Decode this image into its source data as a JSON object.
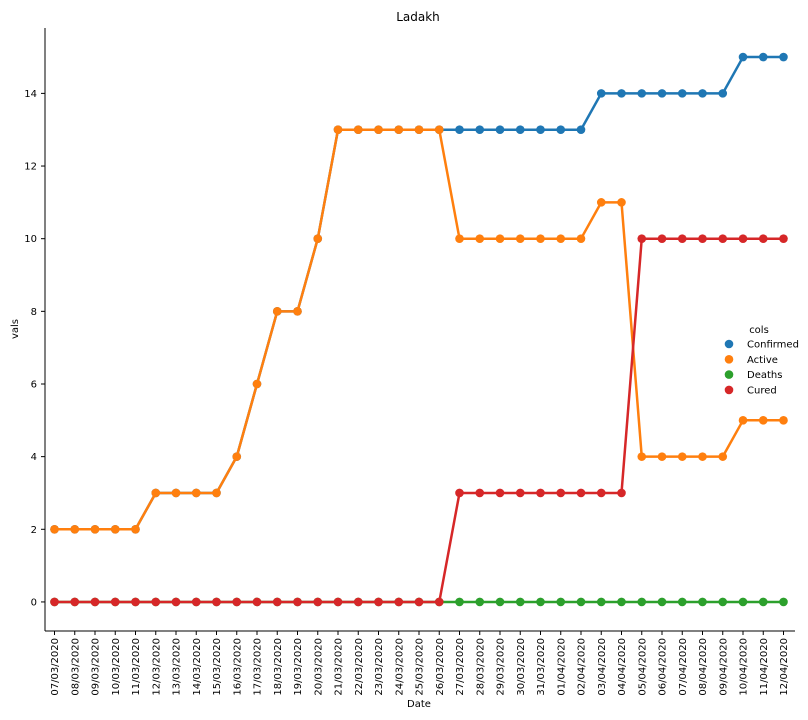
{
  "chart_data": {
    "type": "line",
    "title": "Ladakh",
    "xlabel": "Date",
    "ylabel": "vals",
    "ylim": [
      -0.8,
      15.8
    ],
    "yticks": [
      0,
      2,
      4,
      6,
      8,
      10,
      12,
      14
    ],
    "grid": false,
    "legend": {
      "title": "cols",
      "placement": "center-right"
    },
    "categories": [
      "07/03/2020",
      "08/03/2020",
      "09/03/2020",
      "10/03/2020",
      "11/03/2020",
      "12/03/2020",
      "13/03/2020",
      "14/03/2020",
      "15/03/2020",
      "16/03/2020",
      "17/03/2020",
      "18/03/2020",
      "19/03/2020",
      "20/03/2020",
      "21/03/2020",
      "22/03/2020",
      "23/03/2020",
      "24/03/2020",
      "25/03/2020",
      "26/03/2020",
      "27/03/2020",
      "28/03/2020",
      "29/03/2020",
      "30/03/2020",
      "31/03/2020",
      "01/04/2020",
      "02/04/2020",
      "03/04/2020",
      "04/04/2020",
      "05/04/2020",
      "06/04/2020",
      "07/04/2020",
      "08/04/2020",
      "09/04/2020",
      "10/04/2020",
      "11/04/2020",
      "12/04/2020"
    ],
    "series": [
      {
        "name": "Confirmed",
        "color": "#1f77b4",
        "values": [
          2,
          2,
          2,
          2,
          2,
          3,
          3,
          3,
          3,
          4,
          6,
          8,
          8,
          10,
          13,
          13,
          13,
          13,
          13,
          13,
          13,
          13,
          13,
          13,
          13,
          13,
          13,
          14,
          14,
          14,
          14,
          14,
          14,
          14,
          15,
          15,
          15
        ]
      },
      {
        "name": "Active",
        "color": "#ff7f0e",
        "values": [
          2,
          2,
          2,
          2,
          2,
          3,
          3,
          3,
          3,
          4,
          6,
          8,
          8,
          10,
          13,
          13,
          13,
          13,
          13,
          13,
          10,
          10,
          10,
          10,
          10,
          10,
          10,
          11,
          11,
          4,
          4,
          4,
          4,
          4,
          5,
          5,
          5
        ]
      },
      {
        "name": "Deaths",
        "color": "#2ca02c",
        "values": [
          0,
          0,
          0,
          0,
          0,
          0,
          0,
          0,
          0,
          0,
          0,
          0,
          0,
          0,
          0,
          0,
          0,
          0,
          0,
          0,
          0,
          0,
          0,
          0,
          0,
          0,
          0,
          0,
          0,
          0,
          0,
          0,
          0,
          0,
          0,
          0,
          0
        ]
      },
      {
        "name": "Cured",
        "color": "#d62728",
        "values": [
          0,
          0,
          0,
          0,
          0,
          0,
          0,
          0,
          0,
          0,
          0,
          0,
          0,
          0,
          0,
          0,
          0,
          0,
          0,
          0,
          3,
          3,
          3,
          3,
          3,
          3,
          3,
          3,
          3,
          10,
          10,
          10,
          10,
          10,
          10,
          10,
          10
        ]
      }
    ]
  }
}
